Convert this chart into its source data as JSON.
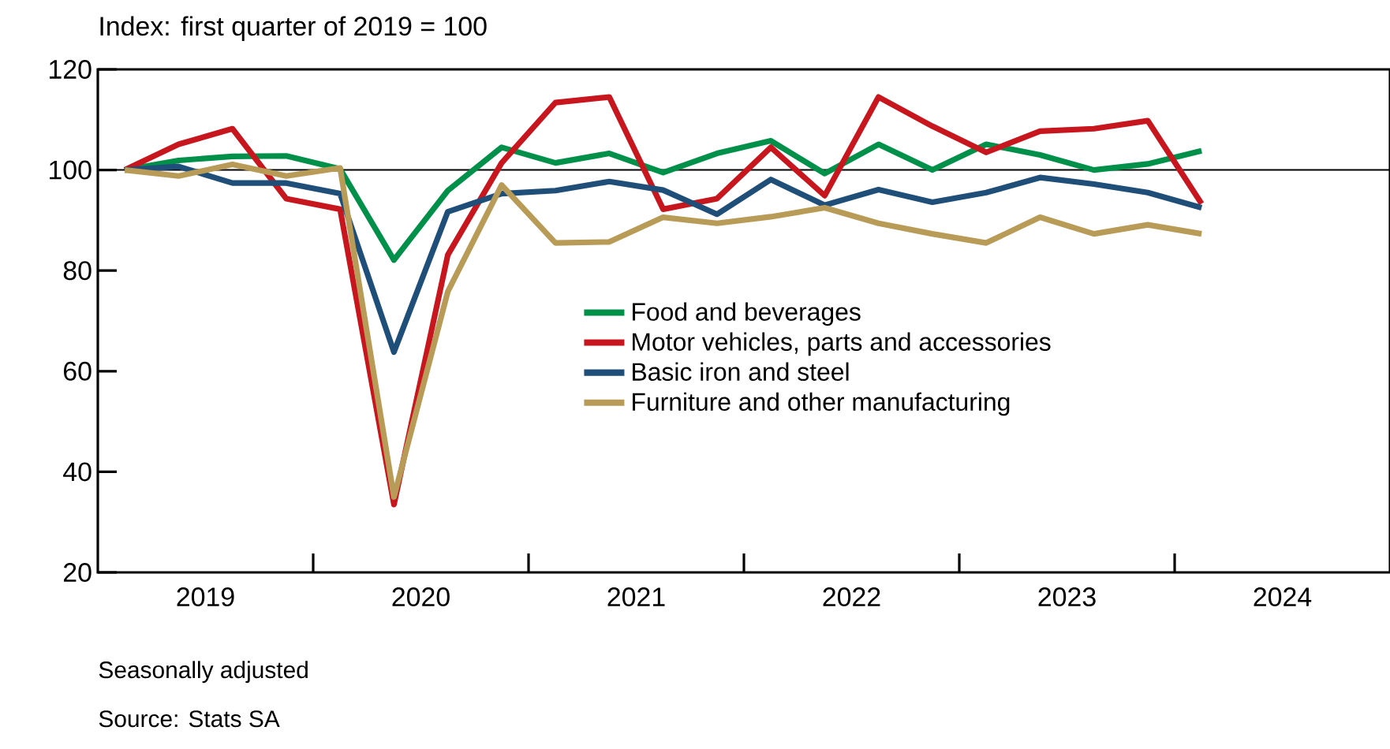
{
  "chart_data": {
    "type": "line",
    "ylabel": "Index: first quarter of 2019 = 100",
    "x": [
      2019.125,
      2019.375,
      2019.625,
      2019.875,
      2020.125,
      2020.375,
      2020.625,
      2020.875,
      2021.125,
      2021.375,
      2021.625,
      2021.875,
      2022.125,
      2022.375,
      2022.625,
      2022.875,
      2023.125,
      2023.375,
      2023.625,
      2023.875,
      2024.125
    ],
    "series": [
      {
        "name": "Food and beverages",
        "color": "#00904a",
        "values": [
          100,
          101.9,
          102.7,
          102.8,
          100.2,
          82.1,
          95.9,
          104.5,
          101.4,
          103.3,
          99.5,
          103.3,
          105.8,
          99.3,
          105.1,
          100,
          105.1,
          103,
          100,
          101.2,
          103.8
        ]
      },
      {
        "name": "Motor vehicles, parts and accessories",
        "color": "#c8161e",
        "values": [
          100,
          105.1,
          108.2,
          94.3,
          92.2,
          33.5,
          83.1,
          101.4,
          113.4,
          114.5,
          92.2,
          94.3,
          104.5,
          94.9,
          114.5,
          108.7,
          103.5,
          107.7,
          108.2,
          109.8,
          93.3
        ]
      },
      {
        "name": "Basic iron and steel",
        "color": "#1f4e79",
        "values": [
          100,
          100.7,
          97.4,
          97.4,
          95.3,
          63.8,
          91.7,
          95.3,
          95.9,
          97.7,
          96,
          91.2,
          98.1,
          93,
          96.1,
          93.6,
          95.5,
          98.5,
          97.2,
          95.5,
          92.5
        ]
      },
      {
        "name": "Furniture and other manufacturing",
        "color": "#b99b58",
        "values": [
          100,
          98.8,
          101.1,
          98.8,
          100.4,
          35,
          75.8,
          97,
          85.5,
          85.7,
          90.6,
          89.4,
          90.7,
          92.5,
          89.4,
          87.3,
          85.5,
          90.6,
          87.3,
          89.1,
          87.3
        ]
      }
    ],
    "xlim": [
      2019,
      2025
    ],
    "xticks": [
      {
        "value": 2019.5,
        "label": "2019"
      },
      {
        "value": 2020,
        "label": null
      },
      {
        "value": 2020.5,
        "label": "2020"
      },
      {
        "value": 2021,
        "label": null
      },
      {
        "value": 2021.5,
        "label": "2021"
      },
      {
        "value": 2022,
        "label": null
      },
      {
        "value": 2022.5,
        "label": "2022"
      },
      {
        "value": 2023,
        "label": null
      },
      {
        "value": 2023.5,
        "label": "2023"
      },
      {
        "value": 2024,
        "label": null
      },
      {
        "value": 2024.5,
        "label": "2024"
      }
    ],
    "ylim": [
      20,
      120
    ],
    "yticks": [
      20,
      40,
      60,
      80,
      100,
      120
    ],
    "ref_lines": [
      {
        "axis": "y",
        "value": 100,
        "color": "#000000"
      }
    ],
    "legend": "center",
    "grid": false,
    "marker": "none",
    "line_style": "solid",
    "annotations": [
      "Seasonally adjusted",
      "Source: Stats SA"
    ]
  }
}
